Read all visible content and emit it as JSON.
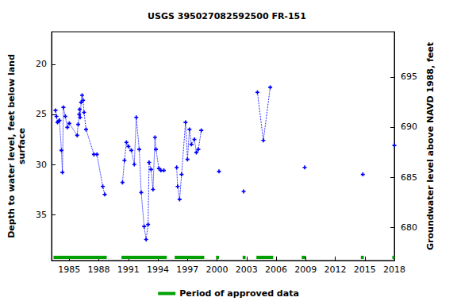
{
  "chart_data": {
    "type": "line",
    "title": "USGS 395027082592500 FR-151",
    "x_label": null,
    "y_label": "Depth to water level, feet below land\nsurface",
    "y2_label": "Groundwater level above NAVD 1988, feet",
    "x": [
      1983.6,
      1983.7,
      1983.8,
      1983.9,
      1984.0,
      1984.2,
      1984.3,
      1984.4,
      1984.6,
      1984.8,
      1985.0,
      1985.8,
      1985.9,
      1986.0,
      1986.05,
      1986.1,
      1986.2,
      1986.3,
      1986.4,
      1986.5,
      1986.7,
      1987.5,
      1987.8,
      1988.4,
      1988.6,
      null,
      1990.4,
      1990.6,
      1990.8,
      1991.0,
      1991.3,
      1991.6,
      1991.8,
      1992.1,
      1992.3,
      1992.6,
      1992.8,
      1993.0,
      1993.1,
      1993.3,
      1993.5,
      1993.7,
      1993.8,
      1994.1,
      1994.3,
      1994.6,
      null,
      1995.9,
      1996.0,
      1996.2,
      1996.4,
      1996.8,
      1997.0,
      1997.2,
      1997.4,
      1997.7,
      1997.9,
      1998.1,
      1998.4,
      null,
      2000.2,
      null,
      2002.7,
      null,
      2004.1,
      2004.7,
      2005.4,
      null,
      2008.9,
      null,
      2014.8,
      null,
      2018.0
    ],
    "values": [
      24.6,
      25.2,
      25.8,
      25.7,
      25.6,
      28.6,
      30.8,
      24.3,
      25.2,
      26.3,
      25.9,
      27.1,
      26.0,
      25.0,
      24.5,
      25.3,
      23.8,
      23.1,
      23.6,
      24.8,
      26.5,
      29.0,
      29.0,
      32.2,
      33.0,
      null,
      31.8,
      29.6,
      27.8,
      28.2,
      28.6,
      30.0,
      25.3,
      28.5,
      32.8,
      36.2,
      37.5,
      36.0,
      29.8,
      30.5,
      32.5,
      27.3,
      28.5,
      30.4,
      30.6,
      30.6,
      null,
      30.3,
      32.2,
      33.5,
      31.0,
      25.8,
      29.5,
      26.5,
      28.0,
      27.5,
      28.8,
      28.5,
      26.6,
      null,
      30.7,
      null,
      32.7,
      null,
      22.8,
      27.6,
      22.3,
      null,
      30.3,
      null,
      31.0,
      null,
      28.1
    ],
    "color": "#0000ff",
    "marker": "plus",
    "line_style": "dotted",
    "xlim": [
      1983.2,
      2018.0
    ],
    "xticks": [
      1985,
      1988,
      1991,
      1994,
      1997,
      2000,
      2003,
      2006,
      2009,
      2012,
      2015,
      2018
    ],
    "ylim": [
      16.75,
      39.6
    ],
    "yticks": [
      20,
      25,
      30,
      35
    ],
    "y2lim": [
      676.67,
      699.52
    ],
    "y2ticks": [
      680,
      685,
      690,
      695
    ],
    "grid": false,
    "approved_periods": {
      "name": "Period of approved data",
      "color": "#00a000",
      "ranges": [
        [
          1983.4,
          1988.8
        ],
        [
          1990.3,
          1994.9
        ],
        [
          1995.7,
          1998.7
        ],
        [
          1999.9,
          2000.2
        ],
        [
          2002.6,
          2002.9
        ],
        [
          2004.0,
          2005.7
        ],
        [
          2008.6,
          2009.0
        ],
        [
          2014.6,
          2014.9
        ],
        [
          2017.8,
          2018.0
        ]
      ]
    }
  }
}
